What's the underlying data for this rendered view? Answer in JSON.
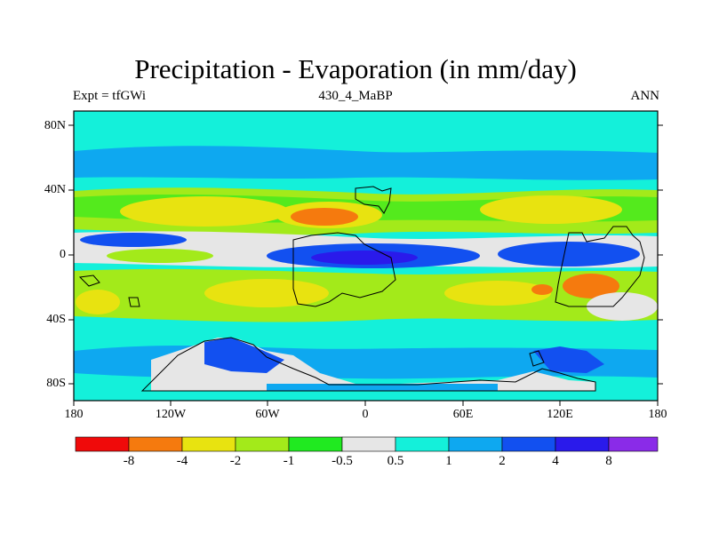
{
  "title": "Precipitation - Evaporation (in mm/day)",
  "subtitle_left": "Expt = tfGWi",
  "subtitle_center": "430_4_MaBP",
  "subtitle_right": "ANN",
  "lat_labels": [
    "80N",
    "40N",
    "0",
    "40S",
    "80S"
  ],
  "lon_labels": [
    "180",
    "120W",
    "60W",
    "0",
    "60E",
    "120E",
    "180"
  ],
  "colorbar": {
    "colors": [
      "#f00a0a",
      "#f57a0e",
      "#e8e310",
      "#a3ea1a",
      "#20ea20",
      "#e6e6e6",
      "#14f0da",
      "#0ea8f0",
      "#1250f0",
      "#2a1aeb",
      "#8a2be8"
    ],
    "labels": [
      "-8",
      "-4",
      "-2",
      "-1",
      "-0.5",
      "0.5",
      "1",
      "2",
      "4",
      "8"
    ]
  },
  "colors": {
    "ocean_base": "#14f0da",
    "coast": "#000000",
    "frame": "#000000"
  }
}
